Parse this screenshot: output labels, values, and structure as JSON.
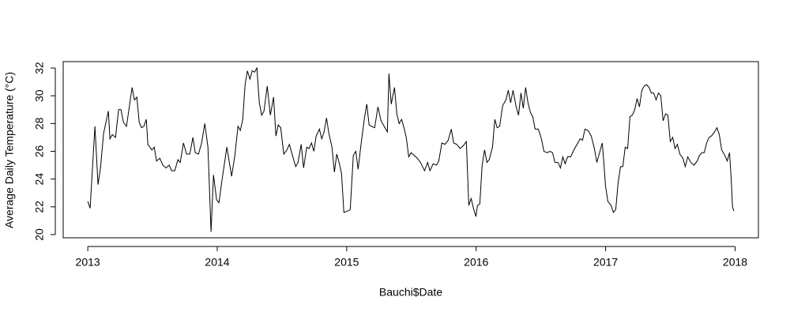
{
  "chart_data": {
    "type": "line",
    "x_label": "Bauchi$Date",
    "y_label": "Average Daily Temperature (°C)",
    "xlim": [
      2012.81,
      2018.18
    ],
    "xticks": [
      2013,
      2014,
      2015,
      2016,
      2017,
      2018
    ],
    "ylim": [
      19.77,
      32.46
    ],
    "yticks": [
      20,
      22,
      24,
      26,
      28,
      30,
      32
    ],
    "color": "#000000",
    "x": [
      2013.0,
      2013.018,
      2013.055,
      2013.079,
      2013.098,
      2013.122,
      2013.159,
      2013.171,
      2013.189,
      2013.214,
      2013.238,
      2013.256,
      2013.275,
      2013.299,
      2013.342,
      2013.36,
      2013.379,
      2013.397,
      2013.415,
      2013.433,
      2013.452,
      2013.464,
      2013.495,
      2013.513,
      2013.531,
      2013.556,
      2013.58,
      2013.604,
      2013.629,
      2013.647,
      2013.672,
      2013.696,
      2013.714,
      2013.739,
      2013.763,
      2013.788,
      2013.812,
      2013.83,
      2013.855,
      2013.879,
      2013.904,
      2013.928,
      2013.952,
      2013.971,
      2013.995,
      2014.013,
      2014.038,
      2014.074,
      2014.111,
      2014.136,
      2014.16,
      2014.178,
      2014.197,
      2014.215,
      2014.233,
      2014.252,
      2014.27,
      2014.288,
      2014.306,
      2014.325,
      2014.343,
      2014.361,
      2014.386,
      2014.41,
      2014.435,
      2014.453,
      2014.471,
      2014.49,
      2014.514,
      2014.538,
      2014.557,
      2014.581,
      2014.606,
      2014.624,
      2014.648,
      2014.667,
      2014.691,
      2014.709,
      2014.728,
      2014.746,
      2014.764,
      2014.789,
      2014.807,
      2014.825,
      2014.844,
      2014.862,
      2014.886,
      2014.905,
      2014.923,
      2014.941,
      2014.96,
      2014.978,
      2015.009,
      2015.027,
      2015.051,
      2015.07,
      2015.088,
      2015.112,
      2015.137,
      2015.155,
      2015.173,
      2015.192,
      2015.216,
      2015.241,
      2015.265,
      2015.289,
      2015.314,
      2015.326,
      2015.344,
      2015.369,
      2015.387,
      2015.405,
      2015.424,
      2015.442,
      2015.46,
      2015.479,
      2015.497,
      2015.521,
      2015.546,
      2015.57,
      2015.601,
      2015.625,
      2015.643,
      2015.668,
      2015.692,
      2015.711,
      2015.735,
      2015.759,
      2015.784,
      2015.808,
      2015.826,
      2015.851,
      2015.875,
      2015.9,
      2015.924,
      2015.943,
      2015.961,
      2015.979,
      2015.998,
      2016.01,
      2016.028,
      2016.046,
      2016.065,
      2016.083,
      2016.101,
      2016.126,
      2016.144,
      2016.162,
      2016.181,
      2016.205,
      2016.23,
      2016.248,
      2016.266,
      2016.285,
      2016.309,
      2016.327,
      2016.346,
      2016.364,
      2016.382,
      2016.4,
      2016.419,
      2016.437,
      2016.455,
      2016.48,
      2016.504,
      2016.523,
      2016.547,
      2016.571,
      2016.59,
      2016.608,
      2016.632,
      2016.651,
      2016.669,
      2016.687,
      2016.706,
      2016.73,
      2016.755,
      2016.779,
      2016.803,
      2016.822,
      2016.84,
      2016.864,
      2016.889,
      2016.913,
      2016.932,
      2016.956,
      2016.974,
      2016.987,
      2016.999,
      2017.017,
      2017.042,
      2017.06,
      2017.078,
      2017.096,
      2017.115,
      2017.133,
      2017.151,
      2017.17,
      2017.188,
      2017.206,
      2017.225,
      2017.243,
      2017.261,
      2017.28,
      2017.298,
      2017.316,
      2017.335,
      2017.353,
      2017.371,
      2017.39,
      2017.408,
      2017.426,
      2017.444,
      2017.463,
      2017.481,
      2017.499,
      2017.518,
      2017.536,
      2017.554,
      2017.573,
      2017.597,
      2017.615,
      2017.634,
      2017.658,
      2017.683,
      2017.707,
      2017.725,
      2017.744,
      2017.762,
      2017.78,
      2017.799,
      2017.817,
      2017.841,
      2017.86,
      2017.878,
      2017.896,
      2017.921,
      2017.939,
      2017.957,
      2017.97,
      2017.98,
      2017.99
    ],
    "values": [
      22.4,
      21.9,
      27.8,
      23.6,
      24.8,
      27.3,
      28.9,
      26.9,
      27.2,
      27.0,
      29.0,
      29.0,
      28.1,
      27.8,
      30.6,
      29.7,
      29.9,
      28.1,
      27.7,
      27.8,
      28.3,
      26.5,
      26.1,
      26.3,
      25.3,
      25.5,
      25.0,
      24.8,
      25.0,
      24.6,
      24.6,
      25.4,
      25.2,
      26.6,
      25.8,
      25.8,
      27.0,
      25.9,
      25.8,
      26.6,
      28.0,
      26.3,
      20.2,
      24.3,
      22.5,
      22.3,
      24.0,
      26.3,
      24.2,
      25.7,
      27.8,
      27.5,
      28.3,
      30.8,
      31.8,
      31.2,
      31.8,
      31.7,
      32.0,
      29.5,
      28.6,
      28.9,
      30.7,
      28.6,
      29.9,
      27.1,
      27.9,
      27.7,
      25.8,
      26.1,
      26.5,
      25.7,
      24.9,
      25.2,
      26.5,
      24.8,
      26.3,
      26.2,
      26.6,
      26.0,
      27.1,
      27.6,
      26.9,
      27.4,
      28.4,
      27.3,
      26.3,
      24.5,
      25.8,
      25.2,
      24.4,
      21.6,
      21.7,
      21.8,
      25.7,
      26.0,
      24.7,
      26.6,
      28.4,
      29.4,
      27.9,
      27.8,
      27.7,
      29.2,
      28.2,
      27.8,
      27.4,
      31.6,
      29.4,
      30.6,
      28.7,
      28.0,
      28.3,
      27.7,
      27.0,
      25.6,
      25.9,
      25.7,
      25.5,
      25.2,
      24.6,
      25.2,
      24.6,
      25.1,
      25.0,
      25.3,
      26.6,
      26.5,
      26.8,
      27.6,
      26.6,
      26.5,
      26.2,
      26.4,
      26.7,
      22.1,
      22.6,
      21.9,
      21.3,
      22.1,
      22.2,
      25.0,
      26.1,
      25.2,
      25.4,
      26.3,
      28.3,
      27.7,
      27.8,
      29.3,
      29.7,
      30.4,
      29.5,
      30.4,
      29.2,
      28.6,
      30.2,
      29.1,
      30.6,
      29.5,
      28.8,
      28.5,
      27.6,
      27.6,
      26.9,
      26.0,
      25.9,
      26.0,
      25.9,
      25.2,
      25.2,
      24.8,
      25.6,
      25.1,
      25.6,
      25.6,
      26.1,
      26.5,
      26.9,
      26.8,
      27.6,
      27.5,
      27.1,
      26.2,
      25.2,
      26.0,
      26.6,
      25.1,
      23.5,
      22.4,
      22.1,
      21.6,
      21.8,
      23.7,
      24.9,
      24.9,
      26.3,
      26.2,
      28.5,
      28.6,
      29.0,
      29.8,
      29.2,
      30.4,
      30.7,
      30.8,
      30.6,
      30.2,
      30.2,
      29.7,
      30.2,
      30.0,
      28.2,
      28.7,
      28.6,
      26.7,
      27.0,
      26.2,
      26.5,
      25.8,
      25.5,
      24.9,
      25.6,
      25.2,
      25.0,
      25.3,
      25.7,
      25.9,
      25.9,
      26.6,
      27.0,
      27.1,
      27.4,
      27.7,
      27.2,
      26.1,
      25.7,
      25.3,
      25.9,
      24.0,
      22.0,
      21.7
    ]
  }
}
